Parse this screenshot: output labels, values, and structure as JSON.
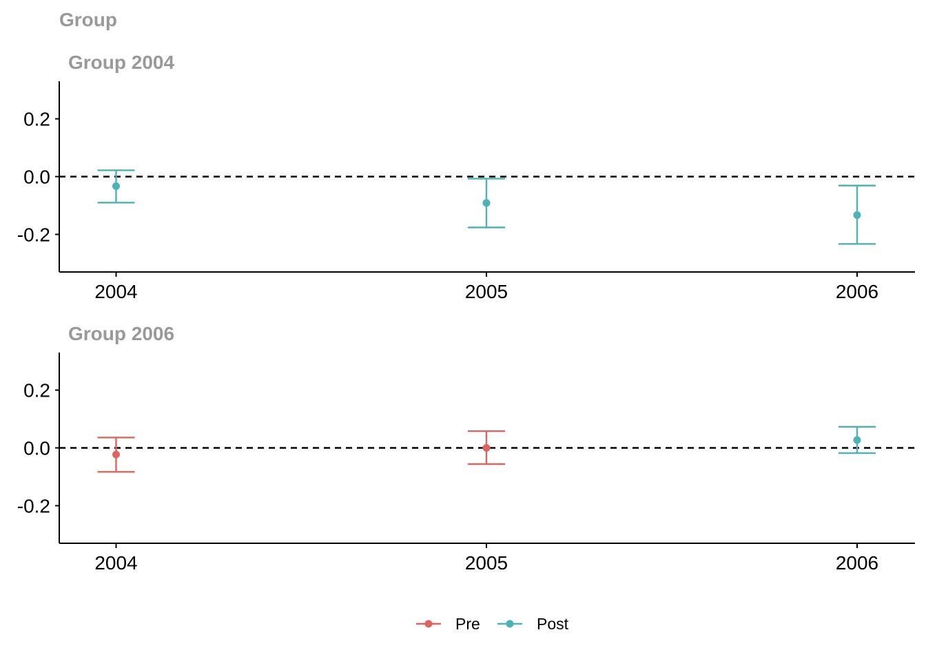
{
  "figure_title": "Group",
  "colors": {
    "pre": "#E0635E",
    "post": "#4BB2B6",
    "refline": "#000000",
    "title": "#999999"
  },
  "legend": [
    {
      "label": "Pre",
      "color": "#E0635E"
    },
    {
      "label": "Post",
      "color": "#4BB2B6"
    }
  ],
  "chart_data": [
    {
      "type": "scatter",
      "title": "Group 2004",
      "categories": [
        "2004",
        "2005",
        "2006"
      ],
      "ylim": [
        -0.33,
        0.33
      ],
      "yticks": [
        "0.2",
        "0.0",
        "-0.2"
      ],
      "ytick_values": [
        0.2,
        0.0,
        -0.2
      ],
      "reference_line": 0.0,
      "points": [
        {
          "x": "2004",
          "y": -0.033,
          "lower": -0.09,
          "upper": 0.022,
          "period": "Post"
        },
        {
          "x": "2005",
          "y": -0.091,
          "lower": -0.176,
          "upper": -0.007,
          "period": "Post"
        },
        {
          "x": "2006",
          "y": -0.133,
          "lower": -0.233,
          "upper": -0.031,
          "period": "Post"
        }
      ]
    },
    {
      "type": "scatter",
      "title": "Group 2006",
      "categories": [
        "2004",
        "2005",
        "2006"
      ],
      "ylim": [
        -0.33,
        0.33
      ],
      "yticks": [
        "0.2",
        "0.0",
        "-0.2"
      ],
      "ytick_values": [
        0.2,
        0.0,
        -0.2
      ],
      "reference_line": 0.0,
      "points": [
        {
          "x": "2004",
          "y": -0.023,
          "lower": -0.083,
          "upper": 0.036,
          "period": "Pre"
        },
        {
          "x": "2005",
          "y": 0.0,
          "lower": -0.056,
          "upper": 0.058,
          "period": "Pre"
        },
        {
          "x": "2006",
          "y": 0.027,
          "lower": -0.018,
          "upper": 0.073,
          "period": "Post"
        }
      ]
    }
  ]
}
